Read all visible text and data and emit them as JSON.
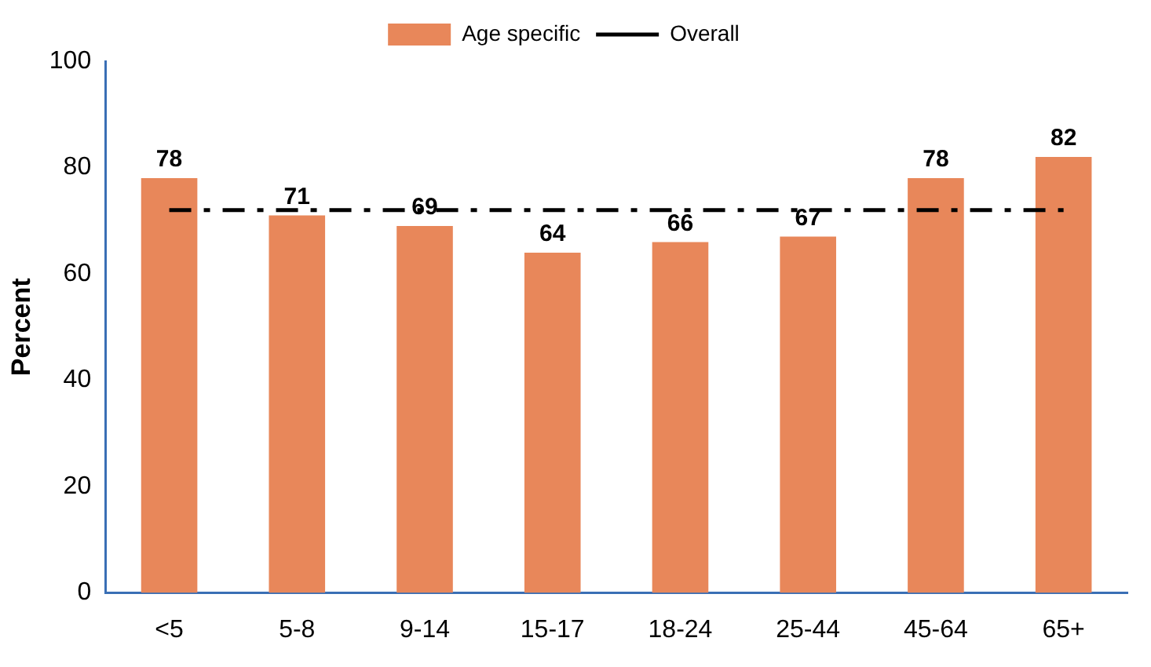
{
  "chart_data": {
    "type": "bar",
    "ylabel": "Percent",
    "categories": [
      "<5",
      "5-8",
      "9-14",
      "15-17",
      "18-24",
      "25-44",
      "45-64",
      "65+"
    ],
    "series": [
      {
        "name": "Age specific",
        "color": "#e8875a",
        "values": [
          78,
          71,
          69,
          64,
          66,
          67,
          78,
          82
        ],
        "value_labels": [
          "78",
          "71",
          "69",
          "64",
          "66",
          "67",
          "78",
          "82"
        ]
      },
      {
        "name": "Overall",
        "type": "line",
        "color": "#000000",
        "line_style": "dashed",
        "marker": "none",
        "values": [
          72,
          72,
          72,
          72,
          72,
          72,
          72,
          72
        ]
      }
    ],
    "ylim": [
      0,
      100
    ],
    "yticks": [
      0,
      20,
      40,
      60,
      80,
      100
    ],
    "grid": false,
    "legend": "top"
  }
}
